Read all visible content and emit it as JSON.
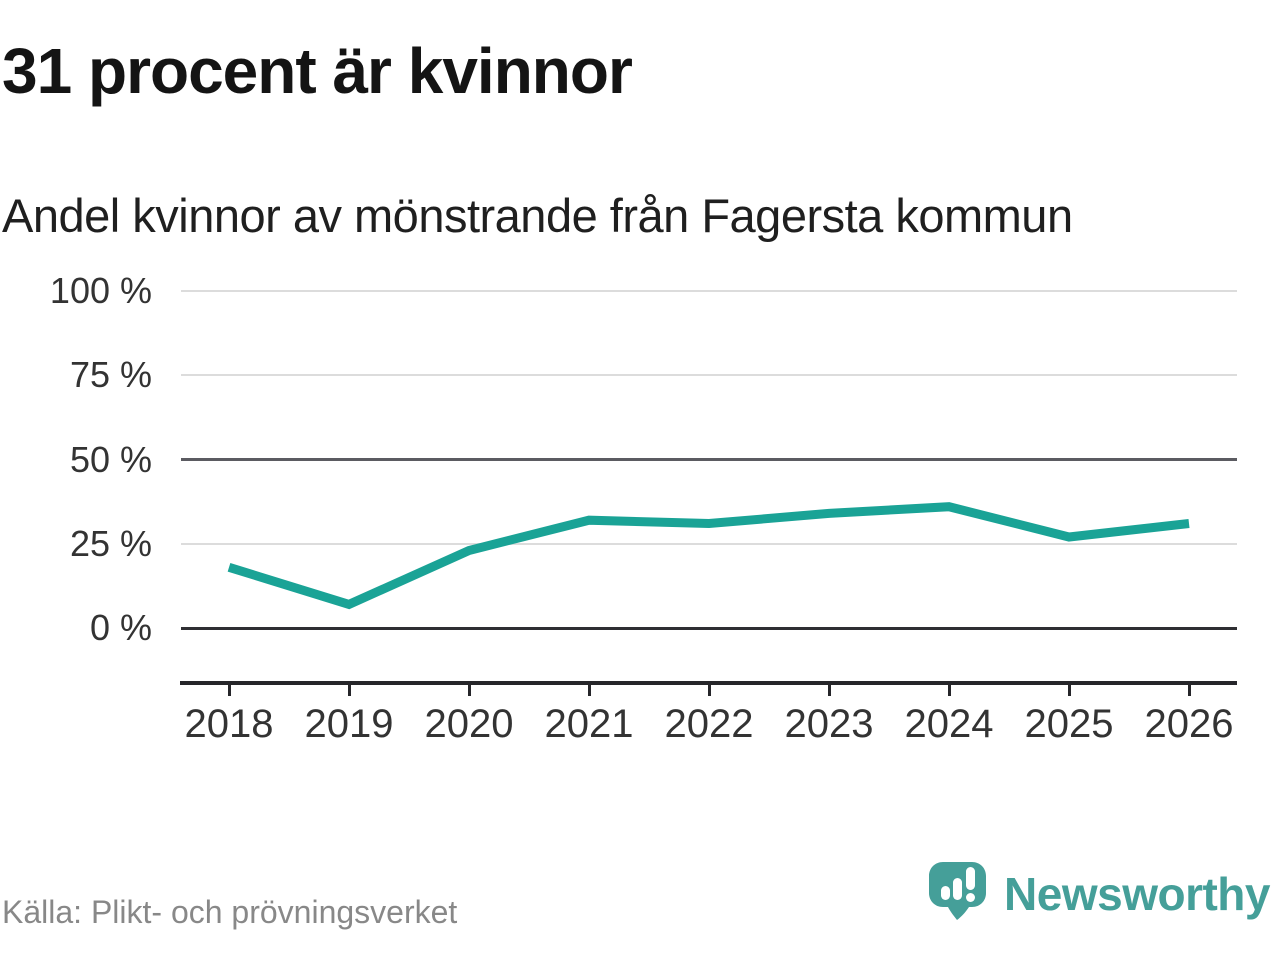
{
  "header": {
    "title": "31 procent är kvinnor",
    "subtitle": "Andel kvinnor av mönstrande från Fagersta kommun"
  },
  "chart_data": {
    "type": "line",
    "title": "31 procent är kvinnor",
    "subtitle": "Andel kvinnor av mönstrande från Fagersta kommun",
    "categories": [
      "2018",
      "2019",
      "2020",
      "2021",
      "2022",
      "2023",
      "2024",
      "2025",
      "2026"
    ],
    "series": [
      {
        "name": "Andel kvinnor av mönstrande",
        "values": [
          18,
          7,
          23,
          32,
          31,
          34,
          36,
          27,
          31
        ]
      }
    ],
    "unit": "%",
    "ylim": [
      0,
      100
    ],
    "yticks": [
      100,
      75,
      50,
      25,
      0
    ],
    "ytick_labels": [
      "100 %",
      "75 %",
      "50 %",
      "25 %",
      "0 %"
    ],
    "grid": "horizontal",
    "legend": "none",
    "line_color": "#1aa396"
  },
  "footer": {
    "source": "Källa: Plikt- och prövningsverket",
    "brand": "Newsworthy",
    "brand_color": "#459f99"
  }
}
